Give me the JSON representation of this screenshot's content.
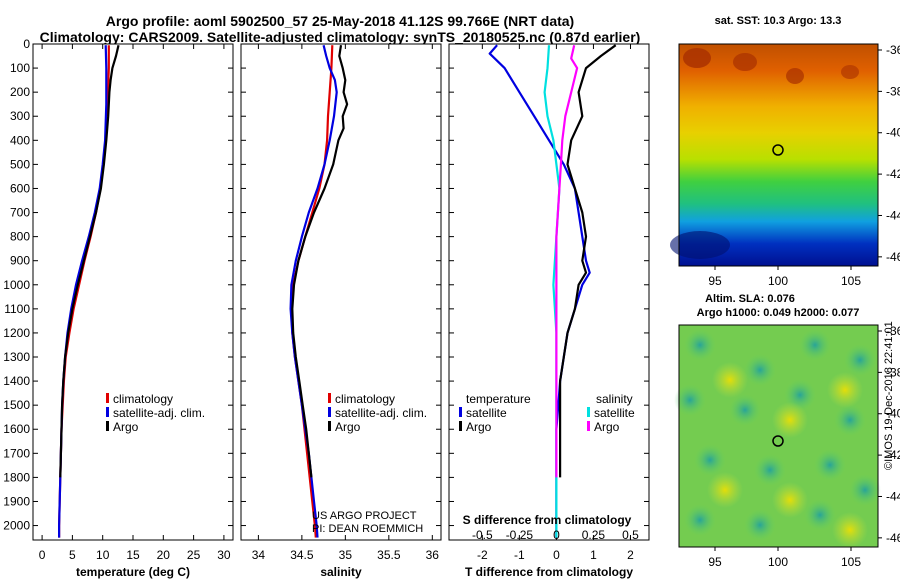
{
  "header": {
    "line1": "Argo profile: aoml 5902500_57 25-May-2018 41.12S 99.766E (NRT data)",
    "line2": "Climatology: CARS2009. Satellite-adjusted climatology: synTS_20180525.nc (0.87d earlier)"
  },
  "colors": {
    "climatology": "#e00000",
    "satellite": "#0000e0",
    "argo": "#000000",
    "sat_salinity": "#00e0e0",
    "argo_salinity": "#ff00ff"
  },
  "depth_axis": {
    "ticks": [
      0,
      100,
      200,
      300,
      400,
      500,
      600,
      700,
      800,
      900,
      1000,
      1100,
      1200,
      1300,
      1400,
      1500,
      1600,
      1700,
      1800,
      1900,
      2000
    ],
    "range": [
      0,
      2060
    ]
  },
  "chart_data": [
    {
      "type": "line",
      "name": "temperature",
      "xlabel": "temperature (deg C)",
      "xlim": [
        -1.5,
        31.5
      ],
      "xticks": [
        0,
        5,
        10,
        15,
        20,
        25,
        30
      ],
      "series": [
        {
          "name": "climatology",
          "color": "#e00000",
          "points": [
            [
              11.0,
              5
            ],
            [
              11.0,
              100
            ],
            [
              10.8,
              250
            ],
            [
              10.5,
              400
            ],
            [
              10.1,
              500
            ],
            [
              9.6,
              600
            ],
            [
              8.9,
              700
            ],
            [
              8.0,
              800
            ],
            [
              7.0,
              900
            ],
            [
              6.1,
              1000
            ],
            [
              5.2,
              1100
            ],
            [
              4.5,
              1200
            ],
            [
              3.9,
              1300
            ],
            [
              3.6,
              1400
            ],
            [
              3.4,
              1500
            ],
            [
              3.2,
              1600
            ],
            [
              3.1,
              1700
            ],
            [
              3.0,
              1800
            ],
            [
              2.9,
              1900
            ],
            [
              2.8,
              2000
            ],
            [
              2.8,
              2050
            ]
          ]
        },
        {
          "name": "satellite-adj. clim.",
          "color": "#0000e0",
          "points": [
            [
              10.5,
              5
            ],
            [
              10.6,
              100
            ],
            [
              10.6,
              250
            ],
            [
              10.4,
              400
            ],
            [
              10.0,
              500
            ],
            [
              9.5,
              600
            ],
            [
              8.7,
              700
            ],
            [
              7.7,
              800
            ],
            [
              6.6,
              900
            ],
            [
              5.6,
              1000
            ],
            [
              4.8,
              1100
            ],
            [
              4.2,
              1200
            ],
            [
              3.8,
              1300
            ],
            [
              3.5,
              1400
            ],
            [
              3.3,
              1500
            ],
            [
              3.2,
              1600
            ],
            [
              3.1,
              1700
            ],
            [
              3.0,
              1800
            ],
            [
              2.9,
              1900
            ],
            [
              2.8,
              2000
            ],
            [
              2.8,
              2050
            ]
          ]
        },
        {
          "name": "Argo",
          "color": "#000000",
          "points": [
            [
              12.6,
              5
            ],
            [
              12.2,
              50
            ],
            [
              11.6,
              100
            ],
            [
              11.3,
              150
            ],
            [
              11.1,
              200
            ],
            [
              10.9,
              300
            ],
            [
              10.6,
              400
            ],
            [
              10.2,
              500
            ],
            [
              9.7,
              600
            ],
            [
              8.9,
              700
            ],
            [
              7.9,
              800
            ],
            [
              6.9,
              900
            ],
            [
              5.9,
              1000
            ],
            [
              5.0,
              1100
            ],
            [
              4.3,
              1200
            ],
            [
              3.8,
              1300
            ],
            [
              3.5,
              1400
            ],
            [
              3.3,
              1500
            ],
            [
              3.2,
              1600
            ],
            [
              3.1,
              1700
            ],
            [
              3.0,
              1800
            ]
          ]
        }
      ],
      "legend": [
        "climatology",
        "satellite-adj. clim.",
        "Argo"
      ]
    },
    {
      "type": "line",
      "name": "salinity",
      "xlabel": "salinity",
      "xlim": [
        33.8,
        36.1
      ],
      "xticks": [
        34,
        34.5,
        35,
        35.5,
        36
      ],
      "xtick_labels": [
        "34",
        "34.5",
        "35",
        "35.5",
        "36"
      ],
      "series": [
        {
          "name": "climatology",
          "color": "#e00000",
          "points": [
            [
              34.85,
              5
            ],
            [
              34.84,
              100
            ],
            [
              34.82,
              200
            ],
            [
              34.8,
              300
            ],
            [
              34.79,
              400
            ],
            [
              34.76,
              500
            ],
            [
              34.7,
              600
            ],
            [
              34.62,
              700
            ],
            [
              34.54,
              800
            ],
            [
              34.46,
              900
            ],
            [
              34.4,
              1000
            ],
            [
              34.38,
              1100
            ],
            [
              34.39,
              1200
            ],
            [
              34.42,
              1300
            ],
            [
              34.46,
              1400
            ],
            [
              34.5,
              1500
            ],
            [
              34.53,
              1600
            ],
            [
              34.56,
              1700
            ],
            [
              34.59,
              1800
            ],
            [
              34.62,
              1900
            ],
            [
              34.65,
              2000
            ],
            [
              34.66,
              2050
            ]
          ]
        },
        {
          "name": "satellite-adj. clim.",
          "color": "#0000e0",
          "points": [
            [
              34.75,
              5
            ],
            [
              34.78,
              50
            ],
            [
              34.82,
              100
            ],
            [
              34.88,
              150
            ],
            [
              34.9,
              200
            ],
            [
              34.87,
              300
            ],
            [
              34.82,
              400
            ],
            [
              34.76,
              500
            ],
            [
              34.68,
              600
            ],
            [
              34.58,
              700
            ],
            [
              34.5,
              800
            ],
            [
              34.43,
              900
            ],
            [
              34.38,
              1000
            ],
            [
              34.37,
              1100
            ],
            [
              34.39,
              1200
            ],
            [
              34.42,
              1300
            ],
            [
              34.46,
              1400
            ],
            [
              34.5,
              1500
            ],
            [
              34.54,
              1600
            ],
            [
              34.58,
              1700
            ],
            [
              34.61,
              1800
            ],
            [
              34.64,
              1900
            ],
            [
              34.67,
              2000
            ],
            [
              34.68,
              2050
            ]
          ]
        },
        {
          "name": "Argo",
          "color": "#000000",
          "points": [
            [
              34.95,
              5
            ],
            [
              34.93,
              50
            ],
            [
              34.97,
              100
            ],
            [
              35.0,
              150
            ],
            [
              34.98,
              200
            ],
            [
              35.02,
              250
            ],
            [
              34.97,
              300
            ],
            [
              34.98,
              350
            ],
            [
              34.92,
              400
            ],
            [
              34.86,
              500
            ],
            [
              34.76,
              600
            ],
            [
              34.64,
              700
            ],
            [
              34.54,
              800
            ],
            [
              34.46,
              900
            ],
            [
              34.41,
              1000
            ],
            [
              34.39,
              1100
            ],
            [
              34.4,
              1200
            ],
            [
              34.43,
              1300
            ],
            [
              34.47,
              1400
            ],
            [
              34.51,
              1500
            ],
            [
              34.55,
              1600
            ],
            [
              34.58,
              1700
            ],
            [
              34.61,
              1800
            ]
          ]
        }
      ],
      "legend": [
        "climatology",
        "satellite-adj. clim.",
        "Argo"
      ],
      "annotations": [
        "US ARGO PROJECT",
        "PI: DEAN ROEMMICH"
      ]
    },
    {
      "type": "line",
      "name": "difference from climatology",
      "xlabel": "T difference from climatology",
      "xlabel_top": "S difference from climatology",
      "xlim": [
        -2.9,
        2.5
      ],
      "xticks": [
        -2,
        -1,
        0,
        1,
        2
      ],
      "secondary_ticks": [
        "-0.5",
        "-0.25",
        "0",
        "0.25",
        "0.5"
      ],
      "legend_groups": {
        "temperature": [
          "satellite",
          "Argo"
        ],
        "salinity": [
          "satellite",
          "Argo"
        ]
      },
      "series": [
        {
          "name": "temperature satellite",
          "color": "#0000e0",
          "points": [
            [
              -1.6,
              5
            ],
            [
              -1.8,
              40
            ],
            [
              -1.4,
              100
            ],
            [
              -1.0,
              200
            ],
            [
              -0.6,
              300
            ],
            [
              -0.2,
              400
            ],
            [
              0.2,
              500
            ],
            [
              0.5,
              600
            ],
            [
              0.6,
              700
            ],
            [
              0.7,
              800
            ],
            [
              0.8,
              900
            ],
            [
              0.9,
              950
            ],
            [
              0.7,
              1000
            ],
            [
              0.5,
              1100
            ],
            [
              0.3,
              1200
            ],
            [
              0.2,
              1300
            ],
            [
              0.1,
              1400
            ],
            [
              0.05,
              1500
            ],
            [
              0.0,
              1600
            ],
            [
              0.0,
              2050
            ]
          ]
        },
        {
          "name": "temperature Argo",
          "color": "#000000",
          "points": [
            [
              1.6,
              5
            ],
            [
              1.2,
              50
            ],
            [
              0.8,
              100
            ],
            [
              0.6,
              200
            ],
            [
              0.7,
              300
            ],
            [
              0.4,
              400
            ],
            [
              0.3,
              500
            ],
            [
              0.5,
              600
            ],
            [
              0.7,
              700
            ],
            [
              0.8,
              800
            ],
            [
              0.7,
              900
            ],
            [
              0.8,
              950
            ],
            [
              0.6,
              1000
            ],
            [
              0.5,
              1100
            ],
            [
              0.3,
              1200
            ],
            [
              0.2,
              1300
            ],
            [
              0.1,
              1400
            ],
            [
              0.1,
              1500
            ],
            [
              0.1,
              1600
            ],
            [
              0.1,
              1700
            ],
            [
              0.1,
              1800
            ]
          ]
        },
        {
          "name": "salinity satellite",
          "color": "#00e0e0",
          "points": [
            [
              -0.05,
              5
            ],
            [
              -0.06,
              100
            ],
            [
              -0.08,
              200
            ],
            [
              -0.06,
              300
            ],
            [
              -0.02,
              400
            ],
            [
              0.0,
              500
            ],
            [
              0.02,
              600
            ],
            [
              0.01,
              700
            ],
            [
              0.0,
              800
            ],
            [
              -0.01,
              900
            ],
            [
              -0.02,
              1000
            ],
            [
              -0.01,
              1100
            ],
            [
              0.0,
              1200
            ],
            [
              0.0,
              1300
            ],
            [
              0.0,
              1500
            ],
            [
              0.0,
              2050
            ]
          ]
        },
        {
          "name": "salinity Argo",
          "color": "#ff00ff",
          "points": [
            [
              0.12,
              5
            ],
            [
              0.1,
              60
            ],
            [
              0.14,
              100
            ],
            [
              0.1,
              200
            ],
            [
              0.06,
              300
            ],
            [
              0.04,
              400
            ],
            [
              0.03,
              500
            ],
            [
              0.02,
              600
            ],
            [
              0.01,
              700
            ],
            [
              0.0,
              800
            ],
            [
              0.0,
              1000
            ],
            [
              0.0,
              1500
            ],
            [
              0.0,
              1800
            ]
          ]
        }
      ]
    }
  ],
  "maps": {
    "sst": {
      "title": "sat. SST: 10.3 Argo: 13.3",
      "lon_ticks": [
        "95",
        "100",
        "105"
      ],
      "lat_ticks": [
        "-36",
        "-38",
        "-40",
        "-42",
        "-44",
        "-46"
      ]
    },
    "sla": {
      "title1": "Altim. SLA: 0.076",
      "title2": "Argo h1000: 0.049 h2000: 0.077",
      "lon_ticks": [
        "95",
        "100",
        "105"
      ],
      "lat_ticks": [
        "-36",
        "-38",
        "-40",
        "-42",
        "-44",
        "-46"
      ]
    }
  },
  "credit": "©IMOS 19-Dec-2018 22:41:01"
}
